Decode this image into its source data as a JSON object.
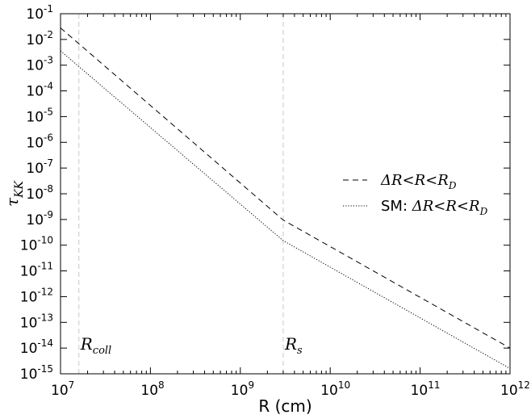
{
  "chart_data": {
    "type": "line",
    "xscale": "log",
    "yscale": "log",
    "xlabel": "R (cm)",
    "ylabel": {
      "base": "τ",
      "sub": "KK"
    },
    "xlim": [
      10000000.0,
      1000000000000.0
    ],
    "ylim": [
      1e-15,
      0.1
    ],
    "x_ticks": [
      {
        "base": "10",
        "exp": "7",
        "value": 10000000.0
      },
      {
        "base": "10",
        "exp": "8",
        "value": 100000000.0
      },
      {
        "base": "10",
        "exp": "9",
        "value": 1000000000.0
      },
      {
        "base": "10",
        "exp": "10",
        "value": 10000000000.0
      },
      {
        "base": "10",
        "exp": "11",
        "value": 100000000000.0
      },
      {
        "base": "10",
        "exp": "12",
        "value": 1000000000000.0
      }
    ],
    "y_ticks": [
      {
        "base": "10",
        "exp": "-1",
        "value": 0.1
      },
      {
        "base": "10",
        "exp": "-2",
        "value": 0.01
      },
      {
        "base": "10",
        "exp": "-3",
        "value": 0.001
      },
      {
        "base": "10",
        "exp": "-4",
        "value": 0.0001
      },
      {
        "base": "10",
        "exp": "-5",
        "value": 1e-05
      },
      {
        "base": "10",
        "exp": "-6",
        "value": 1e-06
      },
      {
        "base": "10",
        "exp": "-7",
        "value": 1e-07
      },
      {
        "base": "10",
        "exp": "-8",
        "value": 1e-08
      },
      {
        "base": "10",
        "exp": "-9",
        "value": 1e-09
      },
      {
        "base": "10",
        "exp": "-10",
        "value": 1e-10
      },
      {
        "base": "10",
        "exp": "-11",
        "value": 1e-11
      },
      {
        "base": "10",
        "exp": "-12",
        "value": 1e-12
      },
      {
        "base": "10",
        "exp": "-13",
        "value": 1e-13
      },
      {
        "base": "10",
        "exp": "-14",
        "value": 1e-14
      },
      {
        "base": "10",
        "exp": "-15",
        "value": 1e-15
      }
    ],
    "series": [
      {
        "name": "ΔR<R<R_D",
        "style": "dashed",
        "color": "#000000",
        "points": [
          [
            10000000.0,
            0.028
          ],
          [
            16000000.0,
            0.0068
          ],
          [
            3000000000.0,
            9.5e-10
          ],
          [
            1000000000000.0,
            1e-14
          ]
        ]
      },
      {
        "name": "SM: ΔR<R<R_D",
        "style": "dotted",
        "color": "#000000",
        "points": [
          [
            10000000.0,
            0.0036
          ],
          [
            16000000.0,
            0.00088
          ],
          [
            3000000000.0,
            1.5e-10
          ],
          [
            1000000000000.0,
            1.6e-15
          ]
        ]
      }
    ],
    "legend": {
      "position": "center-right",
      "entries": [
        {
          "prefix": "",
          "math": "ΔR<R<R",
          "sub": "D",
          "style": "dashed"
        },
        {
          "prefix": "SM: ",
          "math": "ΔR<R<R",
          "sub": "D",
          "style": "dotted"
        }
      ]
    },
    "vlines": [
      {
        "x": 16000000.0,
        "label": "R",
        "sub": "coll",
        "color": "#c8c8c8"
      },
      {
        "x": 3000000000.0,
        "label": "R",
        "sub": "s",
        "color": "#c8c8c8"
      }
    ],
    "grid": false
  }
}
